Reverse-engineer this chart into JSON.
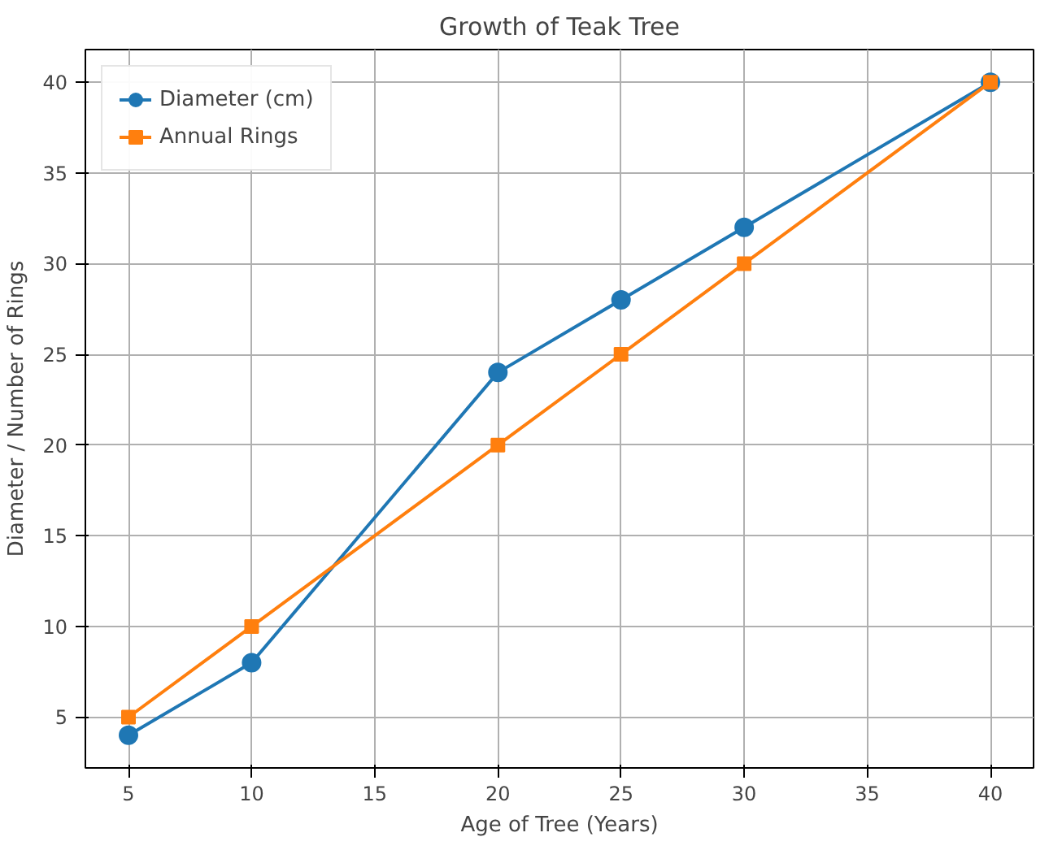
{
  "chart_data": {
    "type": "line",
    "title": "Growth of Teak Tree",
    "xlabel": "Age of Tree (Years)",
    "ylabel": "Diameter / Number of Rings",
    "x": [
      5,
      10,
      20,
      25,
      30,
      40
    ],
    "series": [
      {
        "name": "Diameter (cm)",
        "color": "#1f77b4",
        "marker": "circle",
        "values": [
          4,
          8,
          24,
          28,
          32,
          40
        ]
      },
      {
        "name": "Annual Rings",
        "color": "#ff7f0e",
        "marker": "square",
        "values": [
          5,
          10,
          20,
          25,
          30,
          40
        ]
      }
    ],
    "xlim": [
      3.25,
      41.75
    ],
    "ylim": [
      2.2,
      41.8
    ],
    "xticks": [
      5,
      10,
      15,
      20,
      25,
      30,
      35,
      40
    ],
    "yticks": [
      5,
      10,
      15,
      20,
      25,
      30,
      35,
      40
    ],
    "grid": true,
    "legend": "top left",
    "line_style": "solid"
  }
}
